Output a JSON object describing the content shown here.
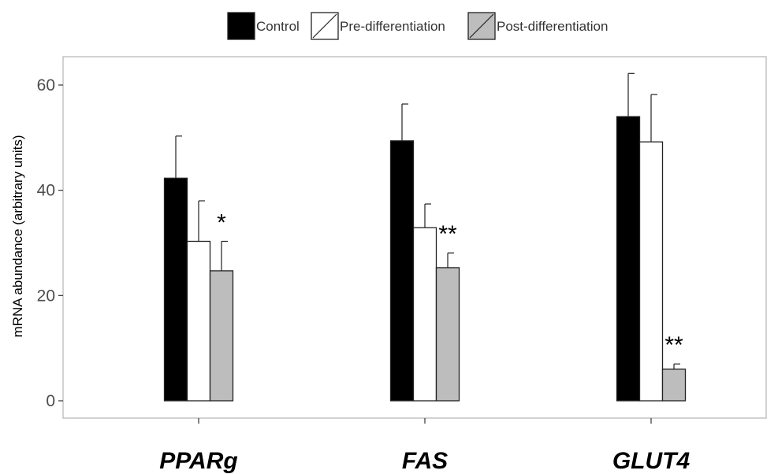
{
  "chart_data": {
    "type": "bar",
    "categories": [
      "PPARg",
      "FAS",
      "GLUT4"
    ],
    "series": [
      {
        "name": "Control",
        "color": "#000000",
        "values": [
          42.3,
          49.4,
          54.0
        ],
        "errors": [
          8.0,
          7.0,
          8.2
        ]
      },
      {
        "name": "Pre-differentiation",
        "color": "#ffffff",
        "values": [
          30.3,
          32.9,
          49.2
        ],
        "errors": [
          7.7,
          4.5,
          9.0
        ]
      },
      {
        "name": "Post-differentiation",
        "color": "#bdbdbd",
        "values": [
          24.7,
          25.3,
          6.0
        ],
        "errors": [
          5.6,
          2.8,
          1.0
        ]
      }
    ],
    "annotations": [
      {
        "category": "PPARg",
        "series": "Post-differentiation",
        "text": "*"
      },
      {
        "category": "FAS",
        "series": "Post-differentiation",
        "text": "**"
      },
      {
        "category": "GLUT4",
        "series": "Post-differentiation",
        "text": "**"
      }
    ],
    "ylabel": "mRNA abundance (arbitrary units)",
    "xlabel": "",
    "ylim": [
      -3,
      65
    ],
    "yticks": [
      0,
      20,
      40,
      60
    ],
    "grid": false,
    "legend_position": "top"
  }
}
